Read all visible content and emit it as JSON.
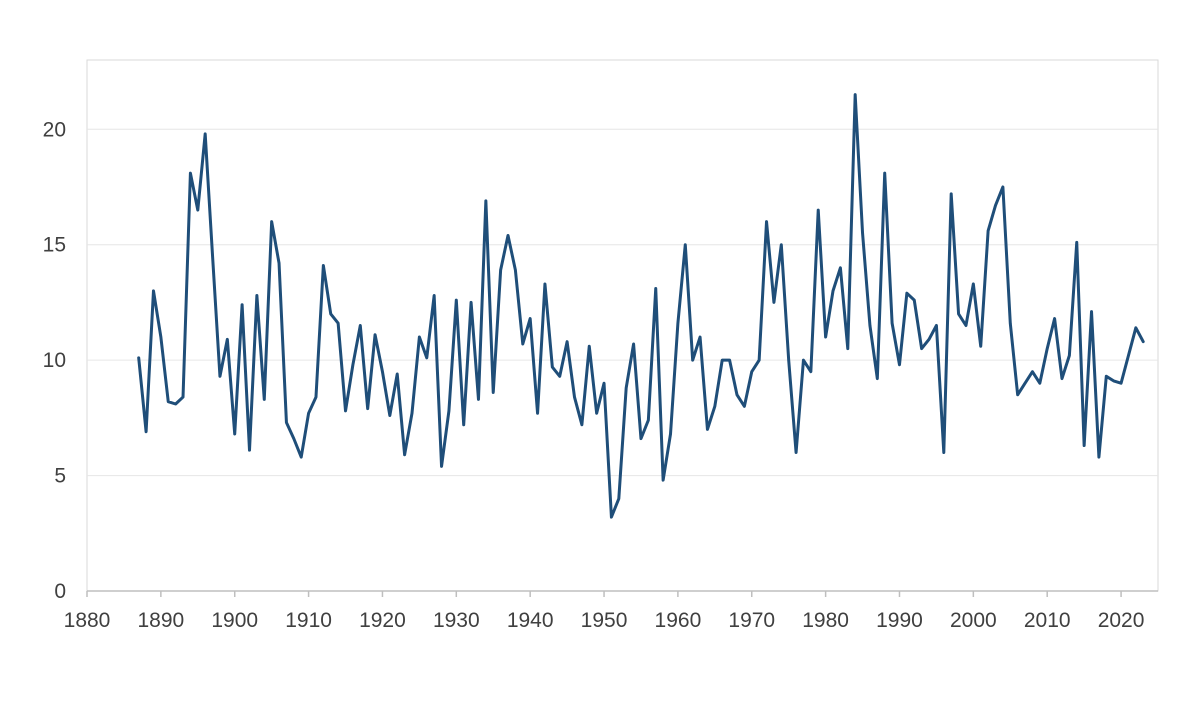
{
  "chart_data": {
    "type": "line",
    "title": "",
    "xlabel": "",
    "ylabel": "",
    "xlim": [
      1880,
      2025
    ],
    "ylim": [
      0,
      23
    ],
    "x_ticks": [
      1880,
      1890,
      1900,
      1910,
      1920,
      1930,
      1940,
      1950,
      1960,
      1970,
      1980,
      1990,
      2000,
      2010,
      2020
    ],
    "y_ticks": [
      0,
      5,
      10,
      15,
      20
    ],
    "grid": "horizontal",
    "legend": "none",
    "series": [
      {
        "color": "#1f4e79",
        "x": [
          1887,
          1888,
          1889,
          1890,
          1891,
          1892,
          1893,
          1894,
          1895,
          1896,
          1897,
          1898,
          1899,
          1900,
          1901,
          1902,
          1903,
          1904,
          1905,
          1906,
          1907,
          1908,
          1909,
          1910,
          1911,
          1912,
          1913,
          1914,
          1915,
          1916,
          1917,
          1918,
          1919,
          1920,
          1921,
          1922,
          1923,
          1924,
          1925,
          1926,
          1927,
          1928,
          1929,
          1930,
          1931,
          1932,
          1933,
          1934,
          1935,
          1936,
          1937,
          1938,
          1939,
          1940,
          1941,
          1942,
          1943,
          1944,
          1945,
          1946,
          1947,
          1948,
          1949,
          1950,
          1951,
          1952,
          1953,
          1954,
          1955,
          1956,
          1957,
          1958,
          1959,
          1960,
          1961,
          1962,
          1963,
          1964,
          1965,
          1966,
          1967,
          1968,
          1969,
          1970,
          1971,
          1972,
          1973,
          1974,
          1975,
          1976,
          1977,
          1978,
          1979,
          1980,
          1981,
          1982,
          1983,
          1984,
          1985,
          1986,
          1987,
          1988,
          1989,
          1990,
          1991,
          1992,
          1993,
          1994,
          1995,
          1996,
          1997,
          1998,
          1999,
          2000,
          2001,
          2002,
          2003,
          2004,
          2005,
          2006,
          2007,
          2008,
          2009,
          2010,
          2011,
          2012,
          2013,
          2014,
          2015,
          2016,
          2017,
          2018,
          2019,
          2020,
          2021,
          2022,
          2023
        ],
        "values": [
          10.1,
          6.9,
          13.0,
          11.0,
          8.2,
          8.1,
          8.4,
          18.1,
          16.5,
          19.8,
          14.5,
          9.3,
          10.9,
          6.8,
          12.4,
          6.1,
          12.8,
          8.3,
          16.0,
          14.2,
          7.3,
          6.6,
          5.8,
          7.7,
          8.4,
          14.1,
          12.0,
          11.6,
          7.8,
          9.8,
          11.5,
          7.9,
          11.1,
          9.5,
          7.6,
          9.4,
          5.9,
          7.7,
          11.0,
          10.1,
          12.8,
          5.4,
          7.8,
          12.6,
          7.2,
          12.5,
          8.3,
          16.9,
          8.6,
          13.9,
          15.4,
          13.9,
          10.7,
          11.8,
          7.7,
          13.3,
          9.7,
          9.3,
          10.8,
          8.4,
          7.2,
          10.6,
          7.7,
          9.0,
          3.2,
          4.0,
          8.8,
          10.7,
          6.6,
          7.4,
          13.1,
          4.8,
          6.8,
          11.6,
          15.0,
          10.0,
          11.0,
          7.0,
          8.0,
          10.0,
          10.0,
          8.5,
          8.0,
          9.5,
          10.0,
          16.0,
          12.5,
          15.0,
          10.0,
          6.0,
          10.0,
          9.5,
          16.5,
          11.0,
          13.0,
          14.0,
          10.5,
          21.5,
          15.5,
          11.5,
          9.2,
          18.1,
          11.6,
          9.8,
          12.9,
          12.6,
          10.5,
          10.9,
          11.5,
          6.0,
          17.2,
          12.0,
          11.5,
          13.3,
          10.6,
          15.6,
          16.7,
          17.5,
          11.6,
          8.5,
          9.0,
          9.5,
          9.0,
          10.5,
          11.8,
          9.2,
          10.2,
          15.1,
          6.3,
          12.1,
          5.8,
          9.3,
          9.1,
          9.0,
          10.2,
          11.4,
          10.8
        ]
      }
    ]
  }
}
